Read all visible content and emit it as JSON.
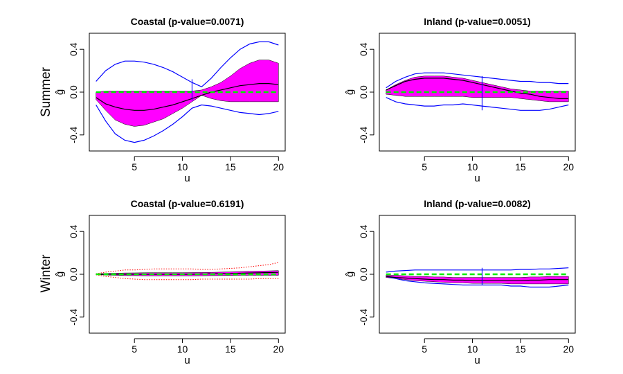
{
  "rows": [
    {
      "label": "Summer"
    },
    {
      "label": "Winter"
    }
  ],
  "chart_data": [
    {
      "type": "line",
      "title": "Coastal (p-value=0.0071)",
      "xlabel": "u",
      "ylabel": "ĝ",
      "xlim": [
        0.3,
        20.7
      ],
      "ylim": [
        -0.55,
        0.55
      ],
      "xticks": [
        5,
        10,
        15,
        20
      ],
      "yticks": [
        -0.4,
        0.0,
        0.4
      ],
      "x": [
        1,
        2,
        3,
        4,
        5,
        6,
        7,
        8,
        9,
        10,
        11,
        12,
        13,
        14,
        15,
        16,
        17,
        18,
        19,
        20
      ],
      "series": [
        {
          "role": "upper-envelope",
          "color": "#0000ff",
          "values": [
            0.1,
            0.2,
            0.26,
            0.29,
            0.29,
            0.28,
            0.26,
            0.23,
            0.19,
            0.14,
            0.09,
            0.05,
            0.13,
            0.23,
            0.32,
            0.4,
            0.45,
            0.47,
            0.47,
            0.44
          ]
        },
        {
          "role": "lower-envelope",
          "color": "#0000ff",
          "values": [
            -0.12,
            -0.27,
            -0.39,
            -0.45,
            -0.47,
            -0.45,
            -0.41,
            -0.36,
            -0.3,
            -0.23,
            -0.15,
            -0.12,
            -0.13,
            -0.15,
            -0.17,
            -0.19,
            -0.2,
            -0.21,
            -0.2,
            -0.18
          ]
        },
        {
          "role": "band-upper",
          "color": "#ff00ff",
          "values": [
            0.0,
            0.01,
            0.01,
            0.01,
            0.01,
            0.01,
            0.01,
            0.01,
            0.01,
            0.01,
            0.01,
            0.02,
            0.05,
            0.09,
            0.15,
            0.22,
            0.27,
            0.3,
            0.3,
            0.27
          ]
        },
        {
          "role": "band-lower",
          "color": "#ff00ff",
          "values": [
            -0.07,
            -0.17,
            -0.26,
            -0.3,
            -0.32,
            -0.31,
            -0.28,
            -0.25,
            -0.2,
            -0.15,
            -0.09,
            -0.03,
            -0.06,
            -0.08,
            -0.09,
            -0.09,
            -0.09,
            -0.09,
            -0.09,
            -0.09
          ]
        },
        {
          "role": "estimate",
          "color": "#000000",
          "values": [
            -0.05,
            -0.11,
            -0.14,
            -0.16,
            -0.17,
            -0.17,
            -0.16,
            -0.14,
            -0.12,
            -0.09,
            -0.06,
            -0.03,
            0.0,
            0.02,
            0.04,
            0.06,
            0.07,
            0.08,
            0.08,
            0.07
          ]
        },
        {
          "role": "null",
          "color": "#00ee00",
          "dashed": true,
          "values": [
            0,
            0,
            0,
            0,
            0,
            0,
            0,
            0,
            0,
            0,
            0,
            0,
            0,
            0,
            0,
            0,
            0,
            0,
            0,
            0
          ]
        }
      ],
      "markers": [
        {
          "x": 11,
          "y1": -0.08,
          "y2": 0.12,
          "color": "#0000ff"
        }
      ]
    },
    {
      "type": "line",
      "title": "Inland (p-value=0.0051)",
      "xlabel": "u",
      "ylabel": "ĝ",
      "xlim": [
        0.3,
        20.7
      ],
      "ylim": [
        -0.55,
        0.55
      ],
      "xticks": [
        5,
        10,
        15,
        20
      ],
      "yticks": [
        -0.4,
        0.0,
        0.4
      ],
      "x": [
        1,
        2,
        3,
        4,
        5,
        6,
        7,
        8,
        9,
        10,
        11,
        12,
        13,
        14,
        15,
        16,
        17,
        18,
        19,
        20
      ],
      "series": [
        {
          "role": "upper-envelope",
          "color": "#0000ff",
          "values": [
            0.04,
            0.1,
            0.14,
            0.17,
            0.18,
            0.18,
            0.18,
            0.17,
            0.16,
            0.15,
            0.14,
            0.13,
            0.12,
            0.11,
            0.1,
            0.1,
            0.09,
            0.09,
            0.08,
            0.08
          ]
        },
        {
          "role": "lower-envelope",
          "color": "#0000ff",
          "values": [
            -0.05,
            -0.09,
            -0.11,
            -0.12,
            -0.13,
            -0.13,
            -0.12,
            -0.12,
            -0.11,
            -0.12,
            -0.13,
            -0.14,
            -0.15,
            -0.16,
            -0.17,
            -0.17,
            -0.17,
            -0.16,
            -0.14,
            -0.12
          ]
        },
        {
          "role": "band-upper",
          "color": "#ff00ff",
          "values": [
            0.02,
            0.07,
            0.11,
            0.14,
            0.15,
            0.15,
            0.15,
            0.14,
            0.13,
            0.11,
            0.09,
            0.07,
            0.05,
            0.03,
            0.02,
            0.01,
            0.01,
            0.01,
            0.01,
            0.01
          ]
        },
        {
          "role": "band-lower",
          "color": "#ff00ff",
          "values": [
            -0.02,
            -0.03,
            -0.04,
            -0.04,
            -0.04,
            -0.04,
            -0.04,
            -0.04,
            -0.04,
            -0.05,
            -0.05,
            -0.05,
            -0.05,
            -0.05,
            -0.06,
            -0.07,
            -0.08,
            -0.09,
            -0.09,
            -0.09
          ]
        },
        {
          "role": "estimate",
          "color": "#000000",
          "values": [
            0.02,
            0.06,
            0.1,
            0.12,
            0.13,
            0.13,
            0.13,
            0.12,
            0.11,
            0.09,
            0.07,
            0.05,
            0.03,
            0.01,
            -0.01,
            -0.02,
            -0.04,
            -0.05,
            -0.06,
            -0.06
          ]
        },
        {
          "role": "null",
          "color": "#00ee00",
          "dashed": true,
          "values": [
            0,
            0,
            0,
            0,
            0,
            0,
            0,
            0,
            0,
            0,
            0,
            0,
            0,
            0,
            0,
            0,
            0,
            0,
            0,
            0
          ]
        }
      ],
      "markers": [
        {
          "x": 11,
          "y1": -0.17,
          "y2": 0.15,
          "color": "#0000ff"
        }
      ]
    },
    {
      "type": "line",
      "title": "Coastal (p-value=0.6191)",
      "xlabel": "u",
      "ylabel": "ĝ",
      "xlim": [
        0.3,
        20.7
      ],
      "ylim": [
        -0.55,
        0.55
      ],
      "xticks": [
        5,
        10,
        15,
        20
      ],
      "yticks": [
        -0.4,
        0.0,
        0.4
      ],
      "x": [
        1,
        2,
        3,
        4,
        5,
        6,
        7,
        8,
        9,
        10,
        11,
        12,
        13,
        14,
        15,
        16,
        17,
        18,
        19,
        20
      ],
      "series": [
        {
          "role": "upper-envelope",
          "color": "#ff0000",
          "dotted": true,
          "values": [
            0.005,
            0.02,
            0.03,
            0.04,
            0.04,
            0.045,
            0.05,
            0.05,
            0.05,
            0.05,
            0.05,
            0.045,
            0.045,
            0.05,
            0.055,
            0.06,
            0.07,
            0.08,
            0.09,
            0.11
          ]
        },
        {
          "role": "lower-envelope",
          "color": "#ff0000",
          "dotted": true,
          "values": [
            -0.005,
            -0.02,
            -0.03,
            -0.04,
            -0.045,
            -0.05,
            -0.05,
            -0.05,
            -0.05,
            -0.05,
            -0.05,
            -0.045,
            -0.045,
            -0.045,
            -0.045,
            -0.045,
            -0.045,
            -0.04,
            -0.04,
            -0.04
          ]
        },
        {
          "role": "band-upper",
          "color": "#ff00ff",
          "values": [
            0.003,
            0.008,
            0.01,
            0.012,
            0.013,
            0.014,
            0.015,
            0.015,
            0.015,
            0.015,
            0.016,
            0.017,
            0.018,
            0.02,
            0.022,
            0.025,
            0.028,
            0.03,
            0.032,
            0.034
          ]
        },
        {
          "role": "band-lower",
          "color": "#ff00ff",
          "values": [
            -0.003,
            -0.008,
            -0.01,
            -0.012,
            -0.013,
            -0.014,
            -0.015,
            -0.015,
            -0.015,
            -0.015,
            -0.015,
            -0.014,
            -0.013,
            -0.012,
            -0.011,
            -0.01,
            -0.01,
            -0.01,
            -0.01,
            -0.01
          ]
        },
        {
          "role": "estimate",
          "color": "#000000",
          "values": [
            0,
            0,
            0,
            0,
            0,
            0,
            0,
            0,
            0,
            0,
            0,
            0.002,
            0.004,
            0.006,
            0.008,
            0.01,
            0.012,
            0.014,
            0.016,
            0.018
          ]
        },
        {
          "role": "null",
          "color": "#00ee00",
          "dashed": true,
          "values": [
            0,
            0,
            0,
            0,
            0,
            0,
            0,
            0,
            0,
            0,
            0,
            0,
            0,
            0,
            0,
            0,
            0,
            0,
            0,
            0
          ]
        }
      ],
      "markers": []
    },
    {
      "type": "line",
      "title": "Inland (p-value=0.0082)",
      "xlabel": "u",
      "ylabel": "ĝ",
      "xlim": [
        0.3,
        20.7
      ],
      "ylim": [
        -0.55,
        0.55
      ],
      "xticks": [
        5,
        10,
        15,
        20
      ],
      "yticks": [
        -0.4,
        0.0,
        0.4
      ],
      "x": [
        1,
        2,
        3,
        4,
        5,
        6,
        7,
        8,
        9,
        10,
        11,
        12,
        13,
        14,
        15,
        16,
        17,
        18,
        19,
        20
      ],
      "series": [
        {
          "role": "upper-envelope",
          "color": "#0000ff",
          "values": [
            0.02,
            0.03,
            0.035,
            0.04,
            0.04,
            0.04,
            0.04,
            0.04,
            0.04,
            0.04,
            0.04,
            0.04,
            0.04,
            0.04,
            0.045,
            0.045,
            0.05,
            0.05,
            0.055,
            0.06
          ]
        },
        {
          "role": "lower-envelope",
          "color": "#0000ff",
          "values": [
            -0.02,
            -0.04,
            -0.06,
            -0.07,
            -0.08,
            -0.085,
            -0.09,
            -0.095,
            -0.1,
            -0.1,
            -0.1,
            -0.1,
            -0.1,
            -0.11,
            -0.11,
            -0.12,
            -0.12,
            -0.12,
            -0.11,
            -0.1
          ]
        },
        {
          "role": "band-upper",
          "color": "#ff00ff",
          "values": [
            -0.01,
            -0.01,
            -0.015,
            -0.02,
            -0.02,
            -0.025,
            -0.025,
            -0.03,
            -0.03,
            -0.03,
            -0.03,
            -0.03,
            -0.03,
            -0.03,
            -0.03,
            -0.025,
            -0.025,
            -0.02,
            -0.02,
            -0.02
          ]
        },
        {
          "role": "band-lower",
          "color": "#ff00ff",
          "values": [
            -0.03,
            -0.04,
            -0.05,
            -0.06,
            -0.065,
            -0.07,
            -0.075,
            -0.08,
            -0.08,
            -0.085,
            -0.085,
            -0.085,
            -0.085,
            -0.09,
            -0.09,
            -0.09,
            -0.09,
            -0.09,
            -0.09,
            -0.09
          ]
        },
        {
          "role": "estimate",
          "color": "#000000",
          "values": [
            -0.02,
            -0.03,
            -0.035,
            -0.04,
            -0.045,
            -0.05,
            -0.05,
            -0.055,
            -0.055,
            -0.06,
            -0.06,
            -0.06,
            -0.06,
            -0.06,
            -0.06,
            -0.055,
            -0.055,
            -0.05,
            -0.05,
            -0.05
          ]
        },
        {
          "role": "null",
          "color": "#00ee00",
          "dashed": true,
          "values": [
            0,
            0,
            0,
            0,
            0,
            0,
            0,
            0,
            0,
            0,
            0,
            0,
            0,
            0,
            0,
            0,
            0,
            0,
            0,
            0
          ]
        }
      ],
      "markers": [
        {
          "x": 11,
          "y1": -0.1,
          "y2": 0.06,
          "color": "#0000ff"
        }
      ]
    }
  ]
}
